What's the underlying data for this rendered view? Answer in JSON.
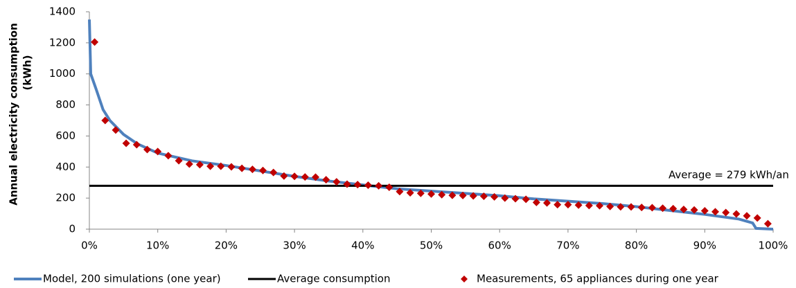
{
  "chart_data": {
    "type": "line",
    "ylabel": [
      "Annual electricity consumption",
      "(kWh)"
    ],
    "xlim": [
      0,
      100
    ],
    "xticks": [
      {
        "value": 0,
        "label": "0%"
      },
      {
        "value": 10,
        "label": "10%"
      },
      {
        "value": 20,
        "label": "20%"
      },
      {
        "value": 30,
        "label": "30%"
      },
      {
        "value": 40,
        "label": "40%"
      },
      {
        "value": 50,
        "label": "50%"
      },
      {
        "value": 60,
        "label": "60%"
      },
      {
        "value": 70,
        "label": "70%"
      },
      {
        "value": 80,
        "label": "80%"
      },
      {
        "value": 90,
        "label": "90%"
      },
      {
        "value": 100,
        "label": "100%"
      }
    ],
    "ylim": [
      0,
      1400
    ],
    "yticks": [
      0,
      200,
      400,
      600,
      800,
      1000,
      1200,
      1400
    ],
    "annotation": "Average = 279 kWh/an",
    "series": [
      {
        "name": "Model, 200 simulations (one year)",
        "type": "line",
        "color": "#4f81bd",
        "x": [
          0,
          0.2,
          1,
          2,
          3,
          5,
          7,
          10,
          15,
          20,
          25,
          30,
          35,
          40,
          45,
          50,
          55,
          60,
          65,
          70,
          75,
          80,
          85,
          90,
          95,
          97,
          97.5,
          100
        ],
        "values": [
          1350,
          1000,
          900,
          770,
          700,
          610,
          550,
          490,
          440,
          410,
          375,
          340,
          310,
          285,
          260,
          245,
          230,
          215,
          195,
          180,
          165,
          145,
          120,
          95,
          65,
          40,
          5,
          0
        ]
      },
      {
        "name": "Average consumption",
        "type": "line",
        "color": "#000000",
        "x": [
          0,
          100
        ],
        "values": [
          279,
          279
        ]
      },
      {
        "name": "Measurements, 65 appliances during one year",
        "type": "scatter",
        "color": "#c00000",
        "x": [
          0.77,
          2.31,
          3.85,
          5.38,
          6.92,
          8.46,
          10,
          11.54,
          13.08,
          14.62,
          16.15,
          17.69,
          19.23,
          20.77,
          22.31,
          23.85,
          25.38,
          26.92,
          28.46,
          30,
          31.54,
          33.08,
          34.62,
          36.15,
          37.69,
          39.23,
          40.77,
          42.31,
          43.85,
          45.38,
          46.92,
          48.46,
          50,
          51.54,
          53.08,
          54.62,
          56.15,
          57.69,
          59.23,
          60.77,
          62.31,
          63.85,
          65.38,
          66.92,
          68.46,
          70,
          71.54,
          73.08,
          74.62,
          76.15,
          77.69,
          79.23,
          80.77,
          82.31,
          83.85,
          85.38,
          86.92,
          88.46,
          90,
          91.54,
          93.08,
          94.62,
          96.15,
          97.69,
          99.23
        ],
        "values": [
          1205,
          700,
          638,
          553,
          544,
          513,
          500,
          473,
          441,
          419,
          415,
          405,
          405,
          401,
          392,
          385,
          378,
          365,
          342,
          340,
          336,
          335,
          318,
          305,
          290,
          287,
          283,
          279,
          270,
          242,
          234,
          231,
          226,
          222,
          218,
          217,
          214,
          212,
          208,
          200,
          196,
          192,
          172,
          169,
          158,
          158,
          155,
          152,
          151,
          146,
          144,
          143,
          140,
          138,
          135,
          132,
          127,
          124,
          118,
          112,
          107,
          98,
          86,
          72,
          35
        ]
      }
    ]
  }
}
